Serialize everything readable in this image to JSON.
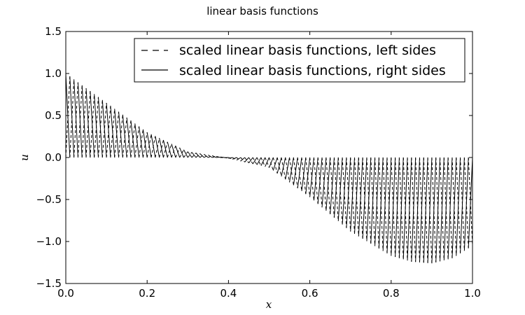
{
  "chart_data": {
    "type": "line",
    "title": "linear basis functions",
    "xlabel": "x",
    "ylabel": "u",
    "xlim": [
      0.0,
      1.0
    ],
    "ylim": [
      -1.5,
      1.5
    ],
    "x_ticks": [
      0.0,
      0.2,
      0.4,
      0.6,
      0.8,
      1.0
    ],
    "x_tick_labels": [
      "0.0",
      "0.2",
      "0.4",
      "0.6",
      "0.8",
      "1.0"
    ],
    "y_ticks": [
      -1.5,
      -1.0,
      -0.5,
      0.0,
      0.5,
      1.0,
      1.5
    ],
    "y_tick_labels": [
      "−1.5",
      "−1.0",
      "−0.5",
      "0.0",
      "0.5",
      "1.0",
      "1.5"
    ],
    "grid": false,
    "legend_position": "top-right",
    "series": [
      {
        "name": "scaled linear basis functions, left sides",
        "style": "dashed",
        "color": "#000000",
        "x": [
          0.0,
          0.1,
          0.2,
          0.3,
          0.4,
          0.5,
          0.6,
          0.7,
          0.8,
          0.85,
          0.9,
          0.95,
          1.0
        ],
        "envelope": [
          1.0,
          0.65,
          0.3,
          0.07,
          -0.01,
          -0.12,
          -0.47,
          -0.88,
          -1.17,
          -1.24,
          -1.26,
          -1.2,
          -1.05
        ]
      },
      {
        "name": "scaled linear basis functions, right sides",
        "style": "solid",
        "color": "#000000",
        "x": [
          0.0,
          0.1,
          0.2,
          0.3,
          0.4,
          0.5,
          0.6,
          0.7,
          0.8,
          0.85,
          0.9,
          0.95,
          1.0
        ],
        "envelope": [
          1.0,
          0.65,
          0.3,
          0.07,
          -0.01,
          -0.12,
          -0.47,
          -0.88,
          -1.17,
          -1.24,
          -1.26,
          -1.2,
          -1.05
        ]
      }
    ],
    "element_count": 100
  }
}
